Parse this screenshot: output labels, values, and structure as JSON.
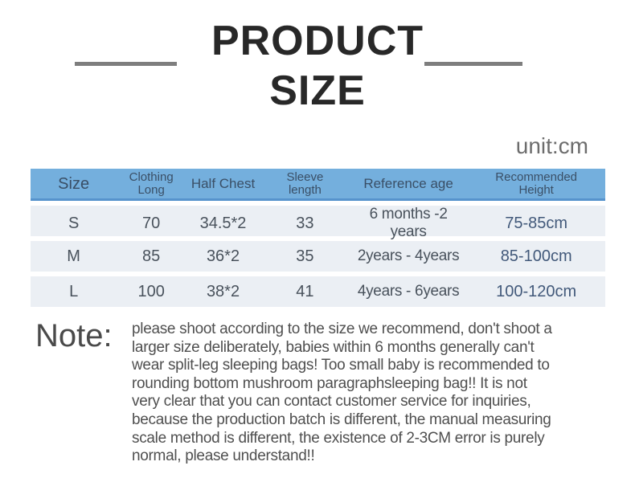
{
  "title": {
    "line1": "PRODUCT",
    "line2": "SIZE"
  },
  "unit_label": "unit:cm",
  "size_table": {
    "columns": [
      {
        "label": "Size"
      },
      {
        "line1": "Clothing",
        "line2": "Long"
      },
      {
        "label": "Half Chest"
      },
      {
        "line1": "Sleeve",
        "line2": "length"
      },
      {
        "label": "Reference age"
      },
      {
        "line1": "Recommended",
        "line2": "Height"
      }
    ],
    "rows": [
      {
        "size": "S",
        "clothing_long": "70",
        "half_chest": "34.5*2",
        "sleeve_length": "33",
        "reference_age": "6 months -2 years",
        "recommended_height": "75-85cm"
      },
      {
        "size": "M",
        "clothing_long": "85",
        "half_chest": "36*2",
        "sleeve_length": "35",
        "reference_age": "2years - 4years",
        "recommended_height": "85-100cm"
      },
      {
        "size": "L",
        "clothing_long": "100",
        "half_chest": "38*2",
        "sleeve_length": "41",
        "reference_age": "4years - 6years",
        "recommended_height": "100-120cm"
      }
    ]
  },
  "note": {
    "label": "Note:",
    "lines": [
      "please shoot according to the size we recommend, don't shoot a",
      "larger size deliberately, babies within 6 months generally can't",
      "wear split-leg sleeping bags! Too small baby is recommended to",
      "rounding bottom mushroom paragraphsleeping bag!! It is not",
      "very clear that you can contact customer service for inquiries,",
      "because the production batch is different, the manual measuring",
      "scale method is different, the existence of 2-3CM error is purely",
      "normal, please understand!!"
    ]
  },
  "colors": {
    "header_bg": "#74afdd",
    "header_border": "#5693cc",
    "row_bg": "#ebeff4",
    "header_text": "#3a4f66",
    "row_text": "#49525c",
    "title_text": "#282828",
    "note_text": "#4f4f4f",
    "divider_gray": "#7e7e7e"
  }
}
